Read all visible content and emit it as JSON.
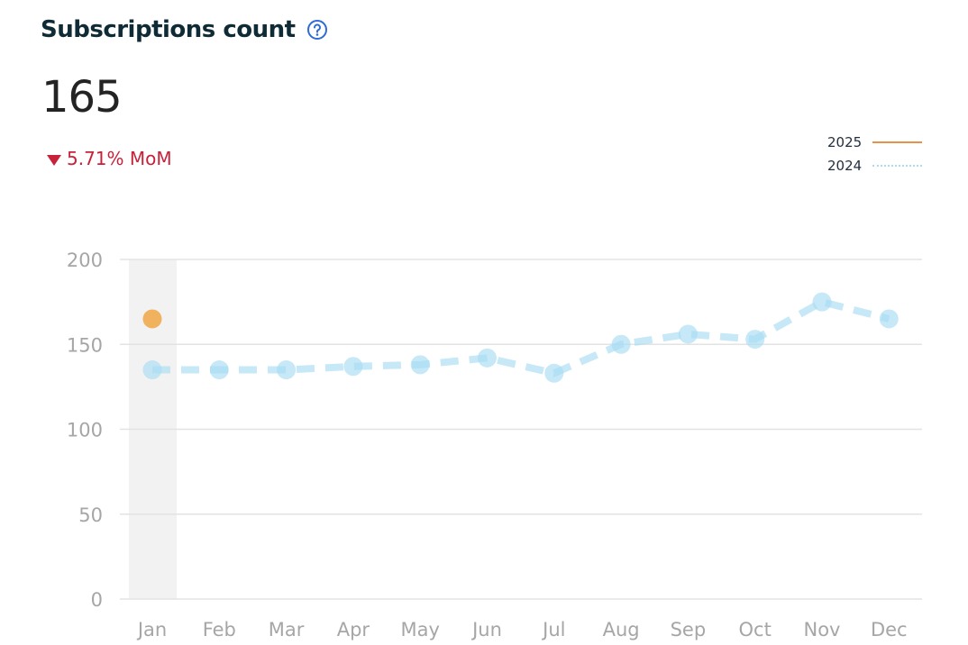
{
  "widget": {
    "title": "Subscriptions count",
    "help_icon": "question-circle-icon",
    "kpi_value": "165",
    "delta_icon": "triangle-down-icon",
    "delta_text": "5.71% MoM",
    "colors": {
      "title": "#0f2b36",
      "help": "#2f6bd8",
      "delta": "#c7223a",
      "series_2025": "#f0b25f",
      "series_2024": "#a7dcf2",
      "legend_2025_line": "#e8914a",
      "grid": "#e3e3e3",
      "highlight_band": "#f2f2f2",
      "axis_text": "#a6a6a6"
    }
  },
  "legend": [
    {
      "label": "2025",
      "style": "solid"
    },
    {
      "label": "2024",
      "style": "dotted"
    }
  ],
  "chart_data": {
    "type": "line",
    "title": "Subscriptions count",
    "xlabel": "",
    "ylabel": "",
    "categories": [
      "Jan",
      "Feb",
      "Mar",
      "Apr",
      "May",
      "Jun",
      "Jul",
      "Aug",
      "Sep",
      "Oct",
      "Nov",
      "Dec"
    ],
    "series": [
      {
        "name": "2025",
        "values": [
          165,
          null,
          null,
          null,
          null,
          null,
          null,
          null,
          null,
          null,
          null,
          null
        ],
        "style": "solid",
        "color": "#f0b25f"
      },
      {
        "name": "2024",
        "values": [
          135,
          135,
          135,
          137,
          138,
          142,
          133,
          150,
          156,
          153,
          175,
          165
        ],
        "style": "dashed",
        "color": "#a7dcf2"
      }
    ],
    "ylim": [
      0,
      200
    ],
    "yticks": [
      0,
      50,
      100,
      150,
      200
    ],
    "grid": true,
    "legend_position": "top-right",
    "highlighted_category": "Jan",
    "annotations": {
      "kpi": "165",
      "change": "-5.71% MoM"
    }
  }
}
